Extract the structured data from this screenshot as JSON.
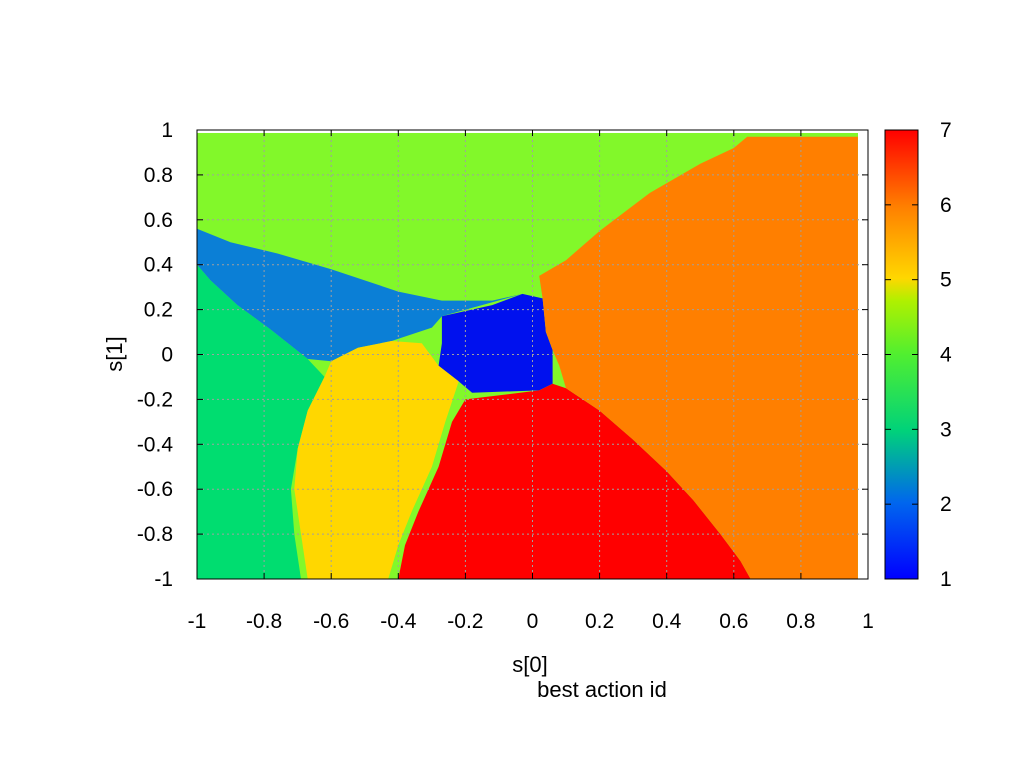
{
  "chart_data": {
    "type": "heatmap",
    "xlabel": "s[0]",
    "ylabel": "s[1]",
    "caption": "best action id",
    "xlim": [
      -1,
      1
    ],
    "ylim": [
      -1,
      1
    ],
    "x_ticks": [
      "-1",
      "-0.8",
      "-0.6",
      "-0.4",
      "-0.2",
      "0",
      "0.2",
      "0.4",
      "0.6",
      "0.8",
      "1"
    ],
    "y_ticks": [
      "-1",
      "-0.8",
      "-0.6",
      "-0.4",
      "-0.2",
      "0",
      "0.2",
      "0.4",
      "0.6",
      "0.8",
      "1"
    ],
    "grid": true,
    "colorbar": {
      "range": [
        1,
        7
      ],
      "ticks": [
        "1",
        "2",
        "3",
        "4",
        "5",
        "6",
        "7"
      ]
    },
    "regions": [
      {
        "value": 1,
        "color": "#0011ee",
        "polygon": [
          [
            -0.27,
            0.17
          ],
          [
            -0.12,
            0.22
          ],
          [
            -0.03,
            0.27
          ],
          [
            0.03,
            0.25
          ],
          [
            0.04,
            0.1
          ],
          [
            0.06,
            0.02
          ],
          [
            0.06,
            -0.13
          ],
          [
            0.02,
            -0.16
          ],
          [
            -0.18,
            -0.17
          ],
          [
            -0.22,
            -0.12
          ],
          [
            -0.28,
            -0.05
          ],
          [
            -0.27,
            0.05
          ]
        ]
      },
      {
        "value": 2,
        "color": "#0b7fd6",
        "polygon": [
          [
            -1,
            0.56
          ],
          [
            -0.9,
            0.5
          ],
          [
            -0.76,
            0.45
          ],
          [
            -0.6,
            0.38
          ],
          [
            -0.4,
            0.28
          ],
          [
            -0.27,
            0.24
          ],
          [
            -0.12,
            0.24
          ],
          [
            -0.03,
            0.27
          ],
          [
            -0.27,
            0.17
          ],
          [
            -0.3,
            0.12
          ],
          [
            -0.42,
            0.06
          ],
          [
            -0.52,
            0.03
          ],
          [
            -0.6,
            -0.03
          ],
          [
            -0.67,
            -0.02
          ],
          [
            -0.78,
            0.11
          ],
          [
            -0.88,
            0.22
          ],
          [
            -0.96,
            0.33
          ],
          [
            -1,
            0.4
          ]
        ]
      },
      {
        "value": 3,
        "color": "#00dd70",
        "polygon": [
          [
            -1,
            0.4
          ],
          [
            -0.96,
            0.33
          ],
          [
            -0.88,
            0.22
          ],
          [
            -0.78,
            0.11
          ],
          [
            -0.67,
            -0.02
          ],
          [
            -0.62,
            -0.1
          ],
          [
            -0.67,
            -0.25
          ],
          [
            -0.7,
            -0.42
          ],
          [
            -0.72,
            -0.6
          ],
          [
            -0.71,
            -0.8
          ],
          [
            -0.69,
            -1
          ],
          [
            -1,
            -1
          ]
        ]
      },
      {
        "value": 5,
        "color": "#ffd700",
        "polygon": [
          [
            -0.6,
            -0.03
          ],
          [
            -0.52,
            0.03
          ],
          [
            -0.42,
            0.06
          ],
          [
            -0.33,
            0.05
          ],
          [
            -0.28,
            -0.05
          ],
          [
            -0.22,
            -0.12
          ],
          [
            -0.26,
            -0.3
          ],
          [
            -0.3,
            -0.5
          ],
          [
            -0.36,
            -0.7
          ],
          [
            -0.4,
            -0.85
          ],
          [
            -0.43,
            -1
          ],
          [
            -0.67,
            -1
          ],
          [
            -0.69,
            -0.8
          ],
          [
            -0.71,
            -0.6
          ],
          [
            -0.7,
            -0.42
          ],
          [
            -0.67,
            -0.25
          ],
          [
            -0.62,
            -0.1
          ]
        ]
      },
      {
        "value": 7,
        "color": "#ff0000",
        "polygon": [
          [
            -0.2,
            -0.2
          ],
          [
            0.02,
            -0.16
          ],
          [
            0.06,
            -0.13
          ],
          [
            0.1,
            -0.15
          ],
          [
            0.2,
            -0.25
          ],
          [
            0.3,
            -0.38
          ],
          [
            0.4,
            -0.52
          ],
          [
            0.48,
            -0.65
          ],
          [
            0.56,
            -0.8
          ],
          [
            0.62,
            -0.92
          ],
          [
            0.65,
            -1
          ],
          [
            -0.4,
            -1
          ],
          [
            -0.38,
            -0.85
          ],
          [
            -0.34,
            -0.7
          ],
          [
            -0.28,
            -0.5
          ],
          [
            -0.24,
            -0.3
          ]
        ]
      },
      {
        "value": 6,
        "color": "#ff7f00",
        "polygon": [
          [
            0.02,
            0.35
          ],
          [
            0.1,
            0.42
          ],
          [
            0.2,
            0.55
          ],
          [
            0.35,
            0.72
          ],
          [
            0.5,
            0.85
          ],
          [
            0.6,
            0.92
          ],
          [
            0.64,
            0.97
          ],
          [
            0.97,
            0.97
          ],
          [
            0.97,
            -1
          ],
          [
            0.65,
            -1
          ],
          [
            0.62,
            -0.92
          ],
          [
            0.56,
            -0.8
          ],
          [
            0.48,
            -0.65
          ],
          [
            0.4,
            -0.52
          ],
          [
            0.3,
            -0.38
          ],
          [
            0.2,
            -0.25
          ],
          [
            0.1,
            -0.15
          ],
          [
            0.08,
            -0.05
          ],
          [
            0.06,
            0.02
          ],
          [
            0.04,
            0.1
          ],
          [
            0.03,
            0.25
          ]
        ]
      }
    ]
  }
}
